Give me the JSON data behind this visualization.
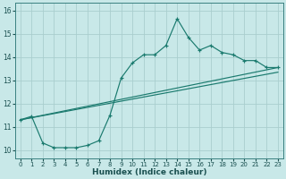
{
  "xlabel": "Humidex (Indice chaleur)",
  "bg_color": "#c8e8e8",
  "grid_color": "#aacece",
  "line_color": "#1a7a6e",
  "xlim_min": -0.5,
  "xlim_max": 23.5,
  "ylim_min": 9.65,
  "ylim_max": 16.35,
  "yticks": [
    10,
    11,
    12,
    13,
    14,
    15,
    16
  ],
  "xticks": [
    0,
    1,
    2,
    3,
    4,
    5,
    6,
    7,
    8,
    9,
    10,
    11,
    12,
    13,
    14,
    15,
    16,
    17,
    18,
    19,
    20,
    21,
    22,
    23
  ],
  "main_x": [
    0,
    1,
    2,
    3,
    4,
    5,
    6,
    7,
    8,
    9,
    10,
    11,
    12,
    13,
    14,
    15,
    16,
    17,
    18,
    19,
    20,
    21,
    22,
    23
  ],
  "main_y": [
    11.3,
    11.45,
    10.3,
    10.1,
    10.1,
    10.1,
    10.2,
    10.4,
    11.5,
    13.1,
    13.75,
    14.1,
    14.1,
    14.5,
    15.65,
    14.85,
    14.3,
    14.5,
    14.2,
    14.1,
    13.85,
    13.85,
    13.55,
    13.55
  ],
  "trend1_x": [
    0,
    23
  ],
  "trend1_y": [
    11.3,
    13.55
  ],
  "trend2_x": [
    0,
    23
  ],
  "trend2_y": [
    11.3,
    13.35
  ]
}
